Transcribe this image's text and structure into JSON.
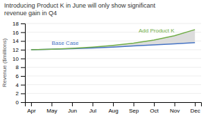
{
  "chart_data": {
    "type": "line",
    "title": "Introducing Product K in June will only show significant\nrevenue gain in Q4",
    "categories": [
      "Apr",
      "May",
      "Jun",
      "Jul",
      "Aug",
      "Sep",
      "Oct",
      "Nov",
      "Dec"
    ],
    "series": [
      {
        "name": "Base Case",
        "color": "#4472C4",
        "values": [
          12.0,
          12.1,
          12.25,
          12.4,
          12.6,
          12.85,
          13.1,
          13.35,
          13.6
        ]
      },
      {
        "name": "Add Product K",
        "color": "#70AD47",
        "values": [
          12.0,
          12.1,
          12.3,
          12.6,
          13.0,
          13.5,
          14.2,
          15.2,
          16.6
        ]
      }
    ],
    "y_label": "Revenue ($millions)",
    "ylim": [
      0,
      18
    ],
    "yticks": [
      0,
      2,
      4,
      6,
      8,
      10,
      12,
      14,
      16,
      18
    ],
    "grid": true
  }
}
